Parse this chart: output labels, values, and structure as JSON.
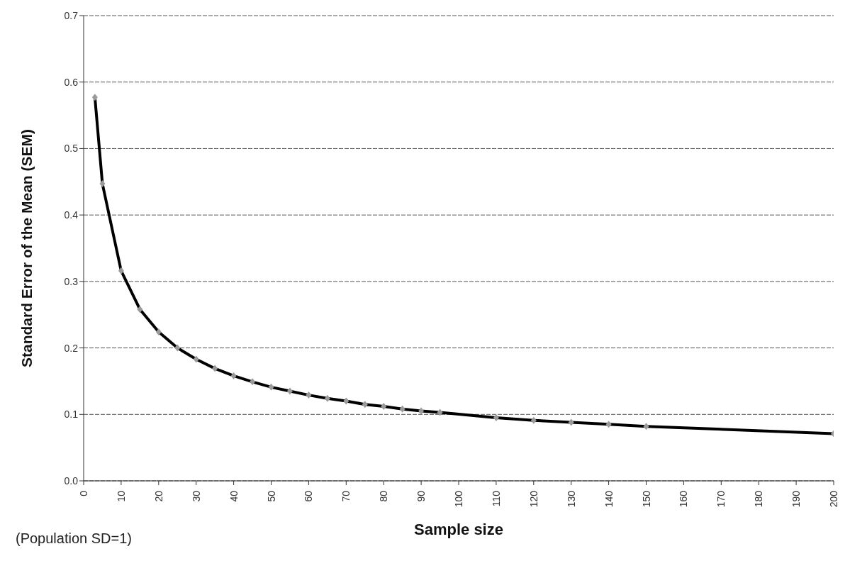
{
  "chart_data": {
    "type": "line",
    "xlabel": "Sample size",
    "ylabel": "Standard Error of the Mean (SEM)",
    "x": [
      3,
      5,
      10,
      15,
      20,
      25,
      30,
      35,
      40,
      45,
      50,
      55,
      60,
      65,
      70,
      75,
      80,
      85,
      90,
      95,
      110,
      120,
      130,
      140,
      150,
      200
    ],
    "series": [
      {
        "color": "#000000",
        "values": [
          0.577,
          0.447,
          0.316,
          0.258,
          0.224,
          0.2,
          0.183,
          0.169,
          0.158,
          0.149,
          0.141,
          0.135,
          0.129,
          0.124,
          0.12,
          0.115,
          0.112,
          0.108,
          0.105,
          0.103,
          0.095,
          0.091,
          0.088,
          0.085,
          0.082,
          0.071
        ]
      }
    ],
    "xlim": [
      0,
      200
    ],
    "xticks": [
      0,
      10,
      20,
      30,
      40,
      50,
      60,
      70,
      80,
      90,
      100,
      110,
      120,
      130,
      140,
      150,
      160,
      170,
      180,
      190,
      200
    ],
    "ylim": [
      0,
      0.7
    ],
    "yticks": [
      {
        "value": 0,
        "label": "0.0"
      },
      {
        "value": 0.1,
        "label": "0.1"
      },
      {
        "value": 0.2,
        "label": "0.2"
      },
      {
        "value": 0.3,
        "label": "0.3"
      },
      {
        "value": 0.4,
        "label": "0.4"
      },
      {
        "value": 0.5,
        "label": "0.5"
      },
      {
        "value": 0.6,
        "label": "0.6"
      },
      {
        "value": 0.7,
        "label": "0.7"
      }
    ],
    "grid": "y",
    "marker": "diamond",
    "line_style": "solid",
    "annotations": [
      "(Population  SD=1)"
    ]
  }
}
